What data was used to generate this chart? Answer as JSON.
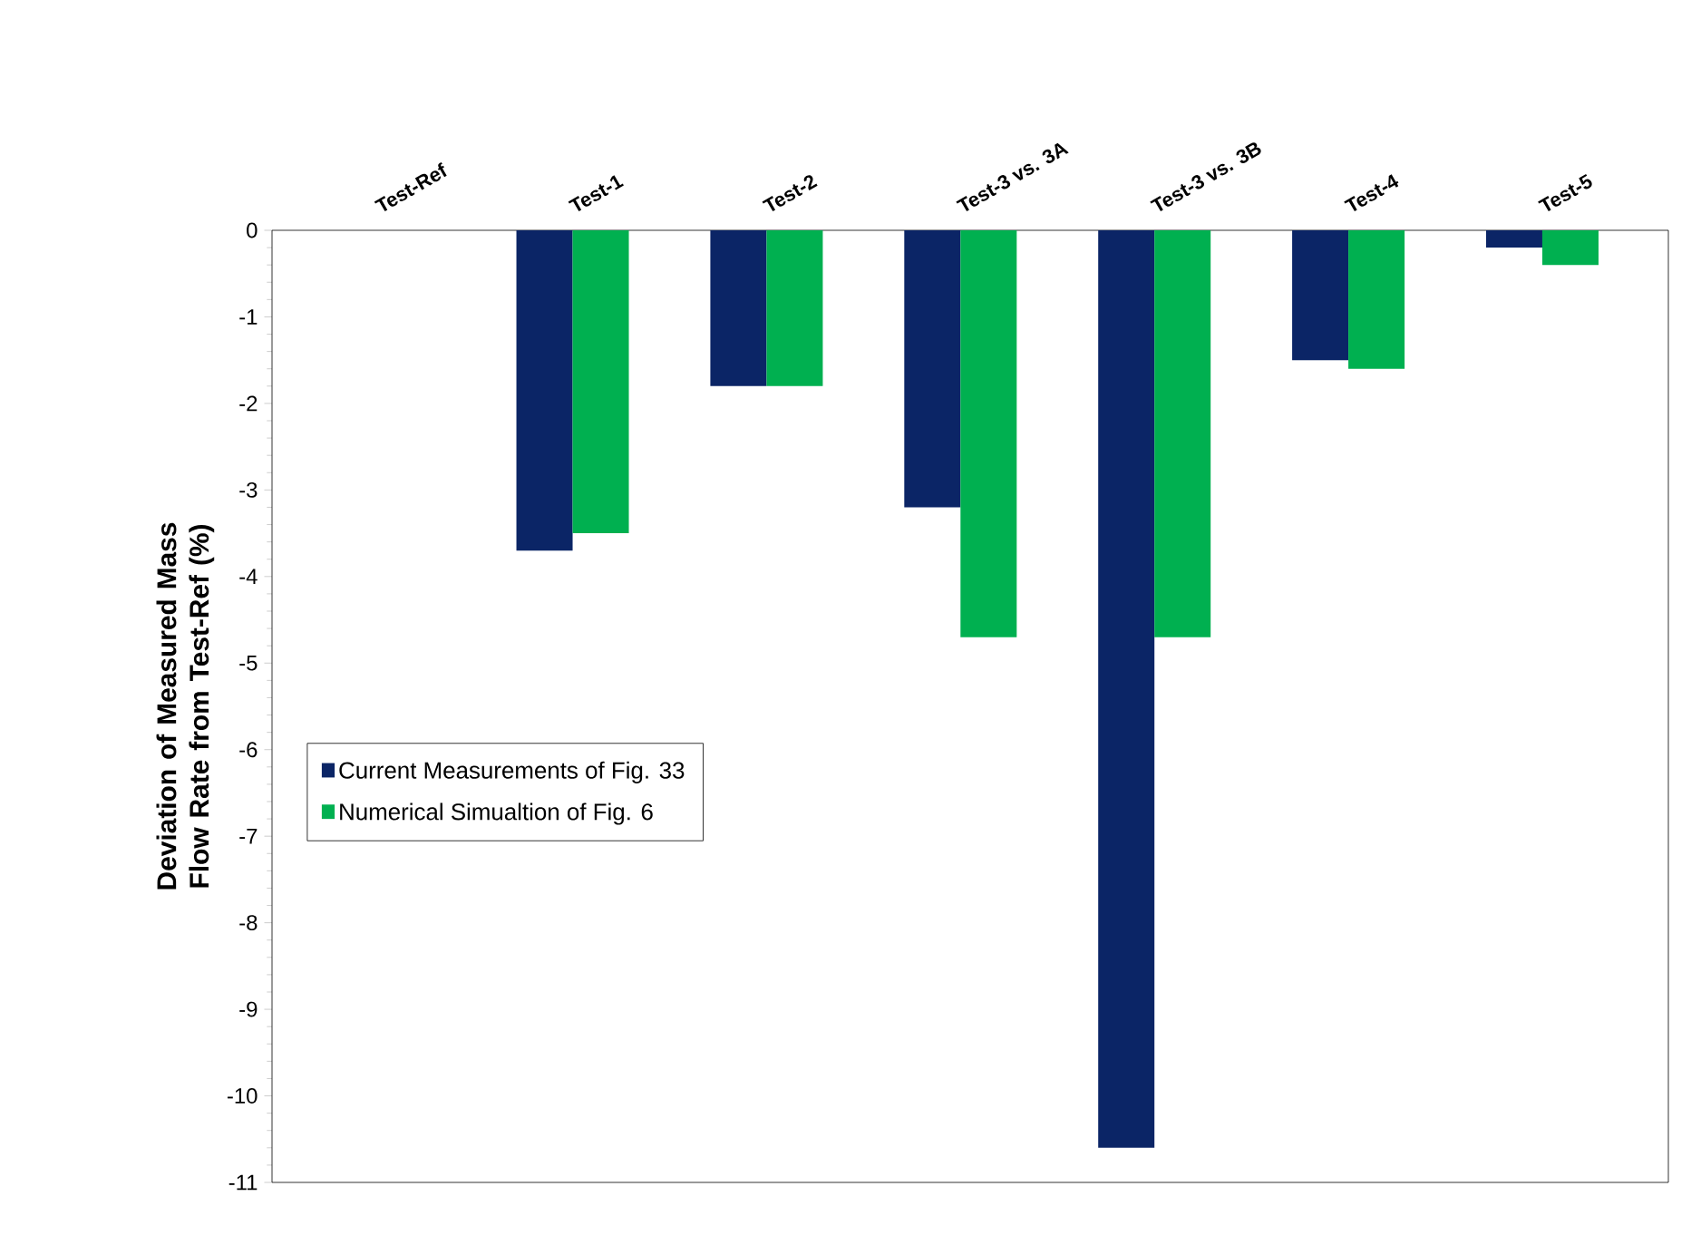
{
  "chart_data": {
    "type": "bar",
    "ylabel": "Deviation of Measured Mass Flow Rate from Test-Ref (%)",
    "categories": [
      "Test-Ref",
      "Test-1",
      "Test-2",
      "Test-3 vs. 3A",
      "Test-3 vs. 3B",
      "Test-4",
      "Test-5"
    ],
    "series": [
      {
        "name": "Current Measurements of Fig. 33",
        "color": "#0b2566",
        "values": [
          0,
          -3.7,
          -1.8,
          -3.2,
          -10.6,
          -1.5,
          -0.2
        ]
      },
      {
        "name": "Numerical Simualtion of Fig. 6",
        "color": "#00b050",
        "values": [
          0,
          -3.5,
          -1.8,
          -4.7,
          -4.7,
          -1.6,
          -0.4
        ]
      }
    ],
    "ylim": [
      -11,
      0
    ],
    "yticks": [
      0,
      -1,
      -2,
      -3,
      -4,
      -5,
      -6,
      -7,
      -8,
      -9,
      -10,
      -11
    ],
    "legend": "left",
    "grid": false
  }
}
